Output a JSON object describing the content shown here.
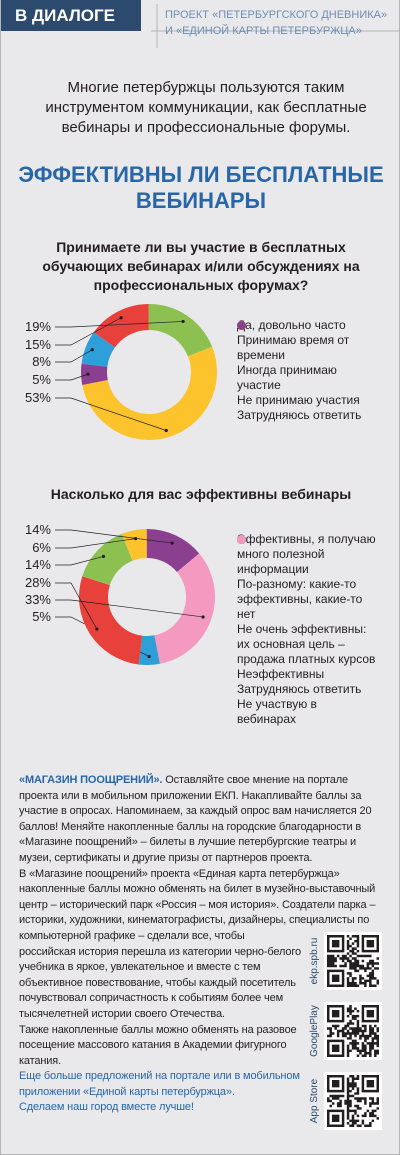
{
  "header": {
    "rubric": "В ДИАЛОГЕ",
    "project_lines": [
      "ПРОЕКТ «ПЕТЕРБУРГСКОГО ДНЕВНИКА»",
      "И «ЕДИНОЙ КАРТЫ ПЕТЕРБУРЖЦА»"
    ]
  },
  "intro": "Многие петербуржцы пользуются таким инструментом коммуникации, как бесплатные вебинары и профессиональные форумы.",
  "headline": [
    "ЭФФЕКТИВНЫ ЛИ БЕСПЛАТНЫЕ",
    "ВЕБИНАРЫ"
  ],
  "chart_data": [
    {
      "type": "pie",
      "donut": true,
      "title": "Принимаете ли вы участие в бесплатных обучающих вебинарах и/или обсуждениях на профессиональных форумах?",
      "categories": [
        "Да, довольно часто",
        "Принимаю время от времени",
        "Иногда принимаю участие",
        "Не принимаю участия",
        "Затрудняюсь ответить"
      ],
      "values": [
        8,
        15,
        19,
        53,
        5
      ],
      "value_labels": [
        "8%",
        "15%",
        "19%",
        "53%",
        "5%"
      ],
      "colors": [
        "#2e9fd8",
        "#e8403a",
        "#8cc152",
        "#fcc32c",
        "#8b3f8f"
      ]
    },
    {
      "type": "pie",
      "donut": true,
      "title": "Насколько для вас эффективны вебинары",
      "categories": [
        "Эффективны, я получаю много полезной информации",
        "По-разному: какие-то эффективны, какие-то нет",
        "Не очень эффективны: их основная цель – продажа платных курсов",
        "Неэффективны",
        "Затрудняюсь ответить",
        "Не участвую в вебинарах"
      ],
      "values": [
        5,
        28,
        14,
        6,
        14,
        33
      ],
      "value_labels": [
        "5%",
        "28%",
        "14%",
        "6%",
        "14%",
        "33%"
      ],
      "colors": [
        "#2e9fd8",
        "#e8403a",
        "#8cc152",
        "#fcc32c",
        "#8b3f8f",
        "#f49ac1"
      ]
    }
  ],
  "footer": {
    "lead": "«МАГАЗИН ПООЩРЕНИЙ».",
    "paragraphs": [
      "Оставляйте свое мнение на портале проекта или в мобильном приложении ЕКП. Накапливайте баллы за участие в опросах. Напоминаем, за каждый опрос вам начисляется 20 баллов! Меняйте накопленные баллы на городские благодарности в «Магазине поощрений» – билеты в лучшие петербургские театры и музеи, сертификаты и другие призы от партнеров проекта.",
      "В «Магазине поощрений» проекта «Единая карта петербуржца» накопленные баллы можно обменять на билет в музейно-выставочный центр – исторический парк «Россия – моя история». Создатели парка – историки, художники, кинематографисты, дизайнеры, специалисты по компьютерной графике – сделали все, чтобы российская история перешла из категории черно-белого учебника в яркое, увлекательное и вместе с тем объективное повествование, чтобы каждый посетитель почувствовал сопричастность к событиям более чем тысячелетней истории своего Отечества.",
      "Также накопленные баллы можно обменять на разовое посещение массового катания в Академии фигурного катания."
    ],
    "closing": [
      "Еще больше предложений на портале или в мобильном приложении «Единой карты петербуржца».",
      "Сделаем наш город вместе лучше!"
    ],
    "qr_labels": [
      "ekp.spb.ru",
      "GooglePlay",
      "App Store"
    ]
  }
}
